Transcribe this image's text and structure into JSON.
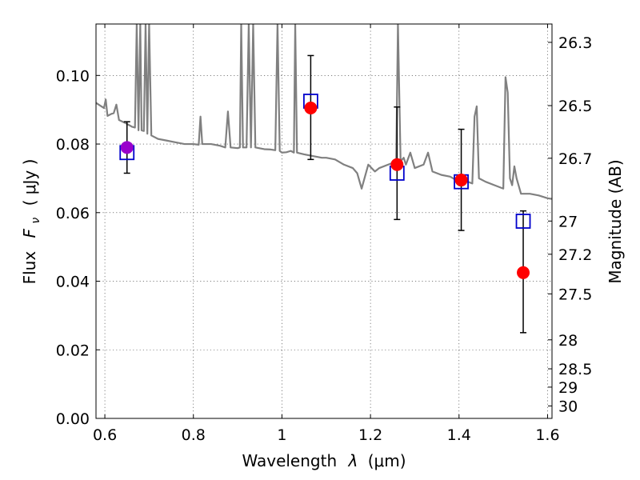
{
  "chart_data": {
    "type": "scatter",
    "xlabel": "Wavelength",
    "xlabel_symbol": "λ",
    "xlabel_unit": "(μm)",
    "ylabel": "Flux",
    "ylabel_symbol": "F",
    "ylabel_subscript": "ν",
    "ylabel_unit": "( μJy )",
    "y2label": "Magnitude (AB)",
    "xlim": [
      0.58,
      1.61
    ],
    "ylim": [
      0.0,
      0.115
    ],
    "x_ticks": [
      {
        "value": 0.6,
        "label": "0.6"
      },
      {
        "value": 0.8,
        "label": "0.8"
      },
      {
        "value": 1.0,
        "label": "1"
      },
      {
        "value": 1.2,
        "label": "1.2"
      },
      {
        "value": 1.4,
        "label": "1.4"
      },
      {
        "value": 1.6,
        "label": "1.6"
      }
    ],
    "y_ticks": [
      {
        "value": 0.0,
        "label": "0.00"
      },
      {
        "value": 0.02,
        "label": "0.02"
      },
      {
        "value": 0.04,
        "label": "0.04"
      },
      {
        "value": 0.06,
        "label": "0.06"
      },
      {
        "value": 0.08,
        "label": "0.08"
      },
      {
        "value": 0.1,
        "label": "0.10"
      }
    ],
    "mag_ticks": [
      {
        "value": 26.3,
        "label": "26.3"
      },
      {
        "value": 26.5,
        "label": "26.5"
      },
      {
        "value": 26.7,
        "label": "26.7"
      },
      {
        "value": 27.0,
        "label": "27"
      },
      {
        "value": 27.2,
        "label": "27.2"
      },
      {
        "value": 27.5,
        "label": "27.5"
      },
      {
        "value": 28.0,
        "label": "28"
      },
      {
        "value": 28.5,
        "label": "28.5"
      },
      {
        "value": 29.0,
        "label": "29"
      },
      {
        "value": 30.0,
        "label": "30"
      }
    ],
    "grid": true,
    "series": [
      {
        "type": "line",
        "color": "#808080",
        "points": [
          [
            0.58,
            0.092
          ],
          [
            0.598,
            0.0905
          ],
          [
            0.602,
            0.093
          ],
          [
            0.606,
            0.0882
          ],
          [
            0.615,
            0.0888
          ],
          [
            0.62,
            0.089
          ],
          [
            0.626,
            0.0915
          ],
          [
            0.632,
            0.087
          ],
          [
            0.648,
            0.086
          ],
          [
            0.662,
            0.085
          ],
          [
            0.668,
            0.0848
          ],
          [
            0.672,
            0.115
          ],
          [
            0.676,
            0.084
          ],
          [
            0.68,
            0.115
          ],
          [
            0.683,
            0.084
          ],
          [
            0.688,
            0.0838
          ],
          [
            0.692,
            0.115
          ],
          [
            0.696,
            0.083
          ],
          [
            0.7,
            0.115
          ],
          [
            0.705,
            0.0825
          ],
          [
            0.72,
            0.0815
          ],
          [
            0.74,
            0.081
          ],
          [
            0.76,
            0.0805
          ],
          [
            0.78,
            0.08
          ],
          [
            0.8,
            0.08
          ],
          [
            0.812,
            0.0798
          ],
          [
            0.816,
            0.088
          ],
          [
            0.82,
            0.08
          ],
          [
            0.84,
            0.08
          ],
          [
            0.86,
            0.0795
          ],
          [
            0.872,
            0.079
          ],
          [
            0.878,
            0.0895
          ],
          [
            0.884,
            0.079
          ],
          [
            0.9,
            0.0788
          ],
          [
            0.905,
            0.079
          ],
          [
            0.908,
            0.115
          ],
          [
            0.912,
            0.079
          ],
          [
            0.92,
            0.079
          ],
          [
            0.925,
            0.115
          ],
          [
            0.93,
            0.079
          ],
          [
            0.935,
            0.115
          ],
          [
            0.94,
            0.079
          ],
          [
            0.96,
            0.0785
          ],
          [
            0.975,
            0.0784
          ],
          [
            0.985,
            0.0782
          ],
          [
            0.99,
            0.115
          ],
          [
            0.995,
            0.078
          ],
          [
            1.0,
            0.0775
          ],
          [
            1.01,
            0.0776
          ],
          [
            1.02,
            0.078
          ],
          [
            1.027,
            0.0775
          ],
          [
            1.03,
            0.115
          ],
          [
            1.034,
            0.0775
          ],
          [
            1.05,
            0.077
          ],
          [
            1.07,
            0.0765
          ],
          [
            1.09,
            0.076
          ],
          [
            1.1,
            0.076
          ],
          [
            1.12,
            0.0755
          ],
          [
            1.14,
            0.074
          ],
          [
            1.16,
            0.073
          ],
          [
            1.17,
            0.0715
          ],
          [
            1.18,
            0.067
          ],
          [
            1.195,
            0.074
          ],
          [
            1.21,
            0.072
          ],
          [
            1.22,
            0.073
          ],
          [
            1.24,
            0.074
          ],
          [
            1.25,
            0.0745
          ],
          [
            1.258,
            0.074
          ],
          [
            1.262,
            0.115
          ],
          [
            1.268,
            0.075
          ],
          [
            1.275,
            0.076
          ],
          [
            1.28,
            0.074
          ],
          [
            1.29,
            0.0775
          ],
          [
            1.3,
            0.073
          ],
          [
            1.32,
            0.074
          ],
          [
            1.33,
            0.0775
          ],
          [
            1.34,
            0.072
          ],
          [
            1.36,
            0.071
          ],
          [
            1.38,
            0.0705
          ],
          [
            1.4,
            0.069
          ],
          [
            1.42,
            0.069
          ],
          [
            1.43,
            0.0685
          ],
          [
            1.435,
            0.088
          ],
          [
            1.44,
            0.091
          ],
          [
            1.445,
            0.07
          ],
          [
            1.46,
            0.069
          ],
          [
            1.48,
            0.068
          ],
          [
            1.49,
            0.0675
          ],
          [
            1.5,
            0.067
          ],
          [
            1.505,
            0.0995
          ],
          [
            1.51,
            0.095
          ],
          [
            1.515,
            0.07
          ],
          [
            1.52,
            0.068
          ],
          [
            1.525,
            0.0735
          ],
          [
            1.53,
            0.07
          ],
          [
            1.54,
            0.0655
          ],
          [
            1.56,
            0.0655
          ],
          [
            1.58,
            0.065
          ],
          [
            1.6,
            0.0642
          ],
          [
            1.61,
            0.064
          ]
        ]
      },
      {
        "type": "errorbar",
        "color": "#000000",
        "points": [
          {
            "x": 0.65,
            "y": 0.079,
            "ylo": 0.0715,
            "yhi": 0.0865
          },
          {
            "x": 1.065,
            "y": 0.0905,
            "ylo": 0.0755,
            "yhi": 0.1058
          },
          {
            "x": 1.26,
            "y": 0.074,
            "ylo": 0.058,
            "yhi": 0.0908
          },
          {
            "x": 1.405,
            "y": 0.0695,
            "ylo": 0.0548,
            "yhi": 0.0843
          },
          {
            "x": 1.545,
            "y": 0.0425,
            "ylo": 0.025,
            "yhi": 0.0605
          }
        ]
      },
      {
        "type": "scatter",
        "marker": "square",
        "color": "#0000cc",
        "points": [
          [
            0.65,
            0.0775
          ],
          [
            1.065,
            0.0925
          ],
          [
            1.26,
            0.0715
          ],
          [
            1.405,
            0.069
          ],
          [
            1.545,
            0.0575
          ]
        ]
      },
      {
        "type": "scatter",
        "marker": "circle",
        "color": "#ff0000",
        "points": [
          [
            0.65,
            0.079
          ],
          [
            1.065,
            0.0905
          ],
          [
            1.26,
            0.074
          ],
          [
            1.405,
            0.0695
          ],
          [
            1.545,
            0.0425
          ]
        ]
      }
    ],
    "highlight_color": "#9900cc"
  }
}
